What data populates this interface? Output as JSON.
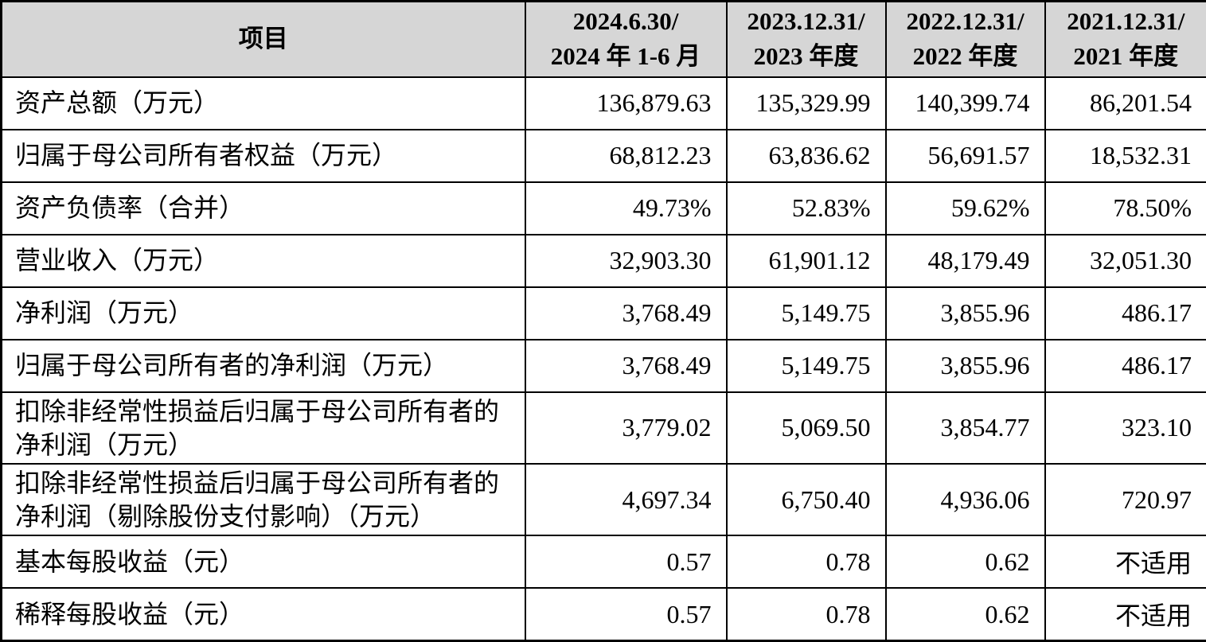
{
  "table": {
    "header": {
      "item_label": "项目",
      "columns": [
        {
          "line1": "2024.6.30/",
          "line2": "2024 年 1-6 月"
        },
        {
          "line1": "2023.12.31/",
          "line2": "2023 年度"
        },
        {
          "line1": "2022.12.31/",
          "line2": "2022 年度"
        },
        {
          "line1": "2021.12.31/",
          "line2": "2021 年度"
        }
      ]
    },
    "rows": [
      {
        "label": "资产总额（万元）",
        "values": [
          "136,879.63",
          "135,329.99",
          "140,399.74",
          "86,201.54"
        ]
      },
      {
        "label": "归属于母公司所有者权益（万元）",
        "values": [
          "68,812.23",
          "63,836.62",
          "56,691.57",
          "18,532.31"
        ]
      },
      {
        "label": "资产负债率（合并）",
        "values": [
          "49.73%",
          "52.83%",
          "59.62%",
          "78.50%"
        ]
      },
      {
        "label": "营业收入（万元）",
        "values": [
          "32,903.30",
          "61,901.12",
          "48,179.49",
          "32,051.30"
        ]
      },
      {
        "label": "净利润（万元）",
        "values": [
          "3,768.49",
          "5,149.75",
          "3,855.96",
          "486.17"
        ]
      },
      {
        "label": "归属于母公司所有者的净利润（万元）",
        "values": [
          "3,768.49",
          "5,149.75",
          "3,855.96",
          "486.17"
        ]
      },
      {
        "label": "扣除非经常性损益后归属于母公司所有者的净利润（万元）",
        "values": [
          "3,779.02",
          "5,069.50",
          "3,854.77",
          "323.10"
        ]
      },
      {
        "label": "扣除非经常性损益后归属于母公司所有者的净利润（剔除股份支付影响）（万元）",
        "values": [
          "4,697.34",
          "6,750.40",
          "4,936.06",
          "720.97"
        ]
      },
      {
        "label": "基本每股收益（元）",
        "values": [
          "0.57",
          "0.78",
          "0.62",
          "不适用"
        ]
      },
      {
        "label": "稀释每股收益（元）",
        "values": [
          "0.57",
          "0.78",
          "0.62",
          "不适用"
        ]
      }
    ],
    "colors": {
      "header_bg": "#d6d6d6",
      "border": "#000000",
      "cell_bg": "#ffffff",
      "text": "#000000"
    }
  }
}
